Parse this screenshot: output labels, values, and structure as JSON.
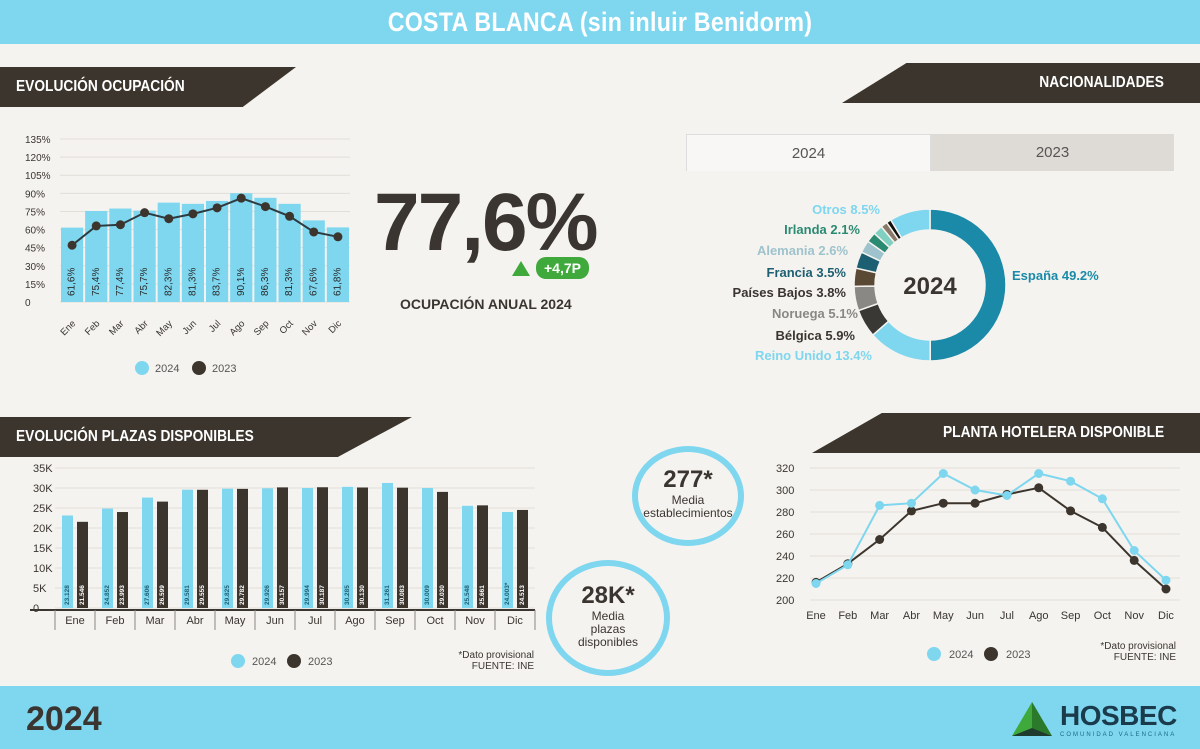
{
  "header": {
    "title": "COSTA BLANCA (sin inluir Benidorm)"
  },
  "sections": {
    "occupancy": "EVOLUCIÓN OCUPACIÓN",
    "nationalities": "NACIONALIDADES",
    "places": "EVOLUCIÓN PLAZAS DISPONIBLES",
    "hotels": "PLANTA HOTELERA DISPONIBLE"
  },
  "kpi": {
    "annual_occupancy": "77,6%",
    "delta": "+4,7P",
    "label": "OCUPACIÓN ANUAL 2024",
    "avg_establishments": "277*",
    "avg_establishments_label_1": "Media",
    "avg_establishments_label_2": "establecimientos",
    "avg_places": "28K*",
    "avg_places_label_1": "Media",
    "avg_places_label_2": "plazas",
    "avg_places_label_3": "disponibles"
  },
  "tabs": [
    {
      "label": "2024",
      "active": true
    },
    {
      "label": "2023",
      "active": false
    }
  ],
  "legend": {
    "s1": "2024",
    "s2": "2023"
  },
  "notes": {
    "provisional": "*Dato provisional",
    "source": "FUENTE: INE"
  },
  "footer": {
    "year": "2024",
    "logo": "HOSBEC",
    "logo_sub": "COMUNIDAD VALENCIANA"
  },
  "colors": {
    "light_blue": "#7ed6ef",
    "dark_brown": "#3b352d",
    "teal": "#1a8aa8",
    "green": "#3fa93b"
  },
  "chart_data": [
    {
      "type": "bar+line",
      "title": "EVOLUCIÓN OCUPACIÓN",
      "categories": [
        "Ene",
        "Feb",
        "Mar",
        "Abr",
        "May",
        "Jun",
        "Jul",
        "Ago",
        "Sep",
        "Oct",
        "Nov",
        "Dic"
      ],
      "series": [
        {
          "name": "2024",
          "type": "bar",
          "values": [
            61.6,
            75.4,
            77.4,
            75.7,
            82.3,
            81.3,
            83.7,
            90.1,
            86.3,
            81.3,
            67.6,
            61.8
          ],
          "labels": [
            "61,6%",
            "75,4%",
            "77,4%",
            "75,7%",
            "82,3%",
            "81,3%",
            "83,7%",
            "90,1%",
            "86,3%",
            "81,3%",
            "67,6%",
            "61,8%"
          ]
        },
        {
          "name": "2023",
          "type": "line",
          "values": [
            47,
            63,
            64,
            74,
            69,
            73,
            78,
            86,
            79,
            71,
            58,
            54
          ]
        }
      ],
      "yticks": [
        "0",
        "15%",
        "30%",
        "45%",
        "60%",
        "75%",
        "90%",
        "105%",
        "120%",
        "135%"
      ],
      "ylim": [
        0,
        135
      ]
    },
    {
      "type": "pie",
      "title": "NACIONALIDADES",
      "center_label": "2024",
      "slices": [
        {
          "label": "España",
          "value": 49.2,
          "text": "España 49.2%",
          "color": "#1a8aa8"
        },
        {
          "label": "Reino Unido",
          "value": 13.4,
          "text": "Reino Unido 13.4%",
          "color": "#7ed6ef"
        },
        {
          "label": "Bélgica",
          "value": 5.9,
          "text": "Bélgica 5.9%",
          "color": "#3a3835"
        },
        {
          "label": "Noruega",
          "value": 5.1,
          "text": "Noruega 5.1%",
          "color": "#8a8885"
        },
        {
          "label": "Países Bajos",
          "value": 3.8,
          "text": "Países Bajos 3.8%",
          "color": "#5a4a35"
        },
        {
          "label": "Francia",
          "value": 3.5,
          "text": "Francia 3.5%",
          "color": "#1d5f72"
        },
        {
          "label": "Alemania",
          "value": 2.6,
          "text": "Alemania 2.6%",
          "color": "#9ec3cc"
        },
        {
          "label": "Irlanda",
          "value": 2.1,
          "text": "Irlanda 2.1%",
          "color": "#2a8a72"
        },
        {
          "label": "Otros_small_a",
          "value": 2.0,
          "text": "",
          "color": "#7fd0c0"
        },
        {
          "label": "Otros_small_b",
          "value": 1.4,
          "text": "",
          "color": "#8a7868"
        },
        {
          "label": "Otros_small_c",
          "value": 1.0,
          "text": "",
          "color": "#111111"
        },
        {
          "label": "Otros",
          "value": 8.5,
          "text": "Otros 8.5%",
          "color": "#7ed6ef"
        }
      ]
    },
    {
      "type": "bar",
      "title": "EVOLUCIÓN PLAZAS DISPONIBLES",
      "categories": [
        "Ene",
        "Feb",
        "Mar",
        "Abr",
        "May",
        "Jun",
        "Jul",
        "Ago",
        "Sep",
        "Oct",
        "Nov",
        "Dic"
      ],
      "series": [
        {
          "name": "2024",
          "values": [
            23128,
            24852,
            27606,
            29581,
            29825,
            29926,
            29994,
            30285,
            31261,
            30009,
            25548,
            24003
          ],
          "labels": [
            "23.128",
            "24.852",
            "27.606",
            "29.581",
            "29.825",
            "29.926",
            "29.994",
            "30.285",
            "31.261",
            "30.009",
            "25.548",
            "24.003*"
          ]
        },
        {
          "name": "2023",
          "values": [
            21546,
            23993,
            26599,
            29555,
            29782,
            30157,
            30187,
            30130,
            30083,
            29030,
            25661,
            24513
          ],
          "labels": [
            "21.546",
            "23.993",
            "26.599",
            "29.555",
            "29.782",
            "30.157",
            "30.187",
            "30.130",
            "30.083",
            "29.030",
            "25.661",
            "24.513"
          ]
        }
      ],
      "yticks": [
        "0",
        "5K",
        "10K",
        "15K",
        "20K",
        "25K",
        "30K",
        "35K"
      ],
      "ylim": [
        0,
        35000
      ]
    },
    {
      "type": "line",
      "title": "PLANTA HOTELERA DISPONIBLE",
      "categories": [
        "Ene",
        "Feb",
        "Mar",
        "Abr",
        "May",
        "Jun",
        "Jul",
        "Ago",
        "Sep",
        "Oct",
        "Nov",
        "Dic"
      ],
      "series": [
        {
          "name": "2024",
          "values": [
            215,
            232,
            286,
            288,
            315,
            300,
            295,
            315,
            308,
            292,
            245,
            218
          ]
        },
        {
          "name": "2023",
          "values": [
            216,
            233,
            255,
            281,
            288,
            288,
            296,
            302,
            281,
            266,
            236,
            210
          ]
        }
      ],
      "yticks": [
        "200",
        "220",
        "240",
        "260",
        "280",
        "300",
        "320"
      ],
      "ylim": [
        200,
        320
      ]
    }
  ]
}
